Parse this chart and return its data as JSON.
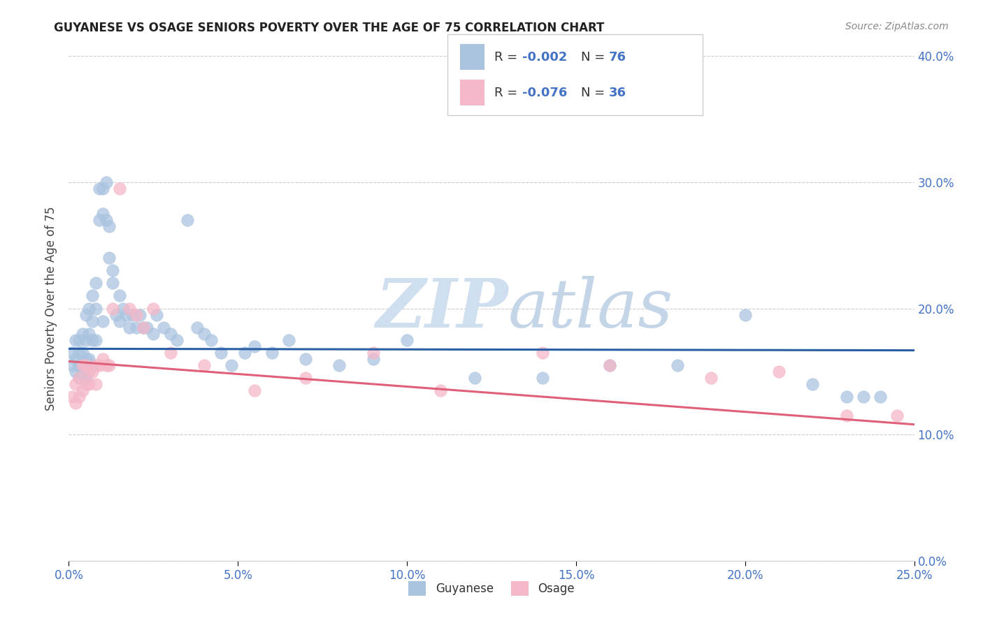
{
  "title": "GUYANESE VS OSAGE SENIORS POVERTY OVER THE AGE OF 75 CORRELATION CHART",
  "source": "Source: ZipAtlas.com",
  "ylabel": "Seniors Poverty Over the Age of 75",
  "xlim": [
    0.0,
    0.25
  ],
  "ylim": [
    0.0,
    0.4
  ],
  "x_tick_vals": [
    0.0,
    0.05,
    0.1,
    0.15,
    0.2,
    0.25
  ],
  "x_tick_labels": [
    "0.0%",
    "5.0%",
    "10.0%",
    "15.0%",
    "20.0%",
    "25.0%"
  ],
  "y_tick_vals": [
    0.0,
    0.1,
    0.2,
    0.3,
    0.4
  ],
  "y_tick_labels": [
    "0.0%",
    "10.0%",
    "20.0%",
    "30.0%",
    "40.0%"
  ],
  "legend_r1": "R = -0.002",
  "legend_n1": "N = 76",
  "legend_r2": "R = -0.076",
  "legend_n2": "N = 36",
  "legend_label1": "Guyanese",
  "legend_label2": "Osage",
  "blue_color": "#aac4e0",
  "pink_color": "#f4b8c8",
  "blue_line_color": "#2b5fa5",
  "pink_line_color": "#e0607a",
  "title_color": "#222222",
  "axis_color": "#4472c4",
  "legend_text_color": "#4472c4",
  "background_color": "#ffffff",
  "watermark_zip": "ZIP",
  "watermark_atlas": "atlas",
  "grid_color": "#cccccc",
  "blue_intercept": 0.168,
  "blue_slope": -0.005,
  "pink_intercept": 0.158,
  "pink_slope": -0.2,
  "guyanese_x": [
    0.001,
    0.001,
    0.002,
    0.002,
    0.002,
    0.003,
    0.003,
    0.003,
    0.003,
    0.004,
    0.004,
    0.004,
    0.005,
    0.005,
    0.005,
    0.005,
    0.006,
    0.006,
    0.006,
    0.007,
    0.007,
    0.007,
    0.007,
    0.008,
    0.008,
    0.008,
    0.009,
    0.009,
    0.01,
    0.01,
    0.01,
    0.011,
    0.011,
    0.012,
    0.012,
    0.013,
    0.013,
    0.014,
    0.015,
    0.015,
    0.016,
    0.017,
    0.018,
    0.019,
    0.02,
    0.021,
    0.022,
    0.023,
    0.025,
    0.026,
    0.028,
    0.03,
    0.032,
    0.035,
    0.038,
    0.04,
    0.042,
    0.045,
    0.048,
    0.052,
    0.055,
    0.06,
    0.065,
    0.07,
    0.08,
    0.09,
    0.1,
    0.12,
    0.14,
    0.16,
    0.18,
    0.2,
    0.22,
    0.23,
    0.235,
    0.24
  ],
  "guyanese_y": [
    0.165,
    0.155,
    0.175,
    0.16,
    0.15,
    0.175,
    0.165,
    0.155,
    0.145,
    0.18,
    0.165,
    0.15,
    0.195,
    0.175,
    0.16,
    0.145,
    0.2,
    0.18,
    0.16,
    0.21,
    0.19,
    0.175,
    0.155,
    0.22,
    0.2,
    0.175,
    0.295,
    0.27,
    0.295,
    0.275,
    0.19,
    0.3,
    0.27,
    0.265,
    0.24,
    0.23,
    0.22,
    0.195,
    0.21,
    0.19,
    0.2,
    0.195,
    0.185,
    0.195,
    0.185,
    0.195,
    0.185,
    0.185,
    0.18,
    0.195,
    0.185,
    0.18,
    0.175,
    0.27,
    0.185,
    0.18,
    0.175,
    0.165,
    0.155,
    0.165,
    0.17,
    0.165,
    0.175,
    0.16,
    0.155,
    0.16,
    0.175,
    0.145,
    0.145,
    0.155,
    0.155,
    0.195,
    0.14,
    0.13,
    0.13,
    0.13
  ],
  "osage_x": [
    0.001,
    0.002,
    0.002,
    0.003,
    0.003,
    0.004,
    0.004,
    0.005,
    0.005,
    0.006,
    0.006,
    0.007,
    0.008,
    0.008,
    0.009,
    0.01,
    0.011,
    0.012,
    0.013,
    0.015,
    0.018,
    0.02,
    0.022,
    0.025,
    0.03,
    0.04,
    0.055,
    0.07,
    0.09,
    0.11,
    0.14,
    0.16,
    0.19,
    0.21,
    0.23,
    0.245
  ],
  "osage_y": [
    0.13,
    0.14,
    0.125,
    0.145,
    0.13,
    0.155,
    0.135,
    0.155,
    0.14,
    0.15,
    0.14,
    0.15,
    0.155,
    0.14,
    0.155,
    0.16,
    0.155,
    0.155,
    0.2,
    0.295,
    0.2,
    0.195,
    0.185,
    0.2,
    0.165,
    0.155,
    0.135,
    0.145,
    0.165,
    0.135,
    0.165,
    0.155,
    0.145,
    0.15,
    0.115,
    0.115
  ]
}
